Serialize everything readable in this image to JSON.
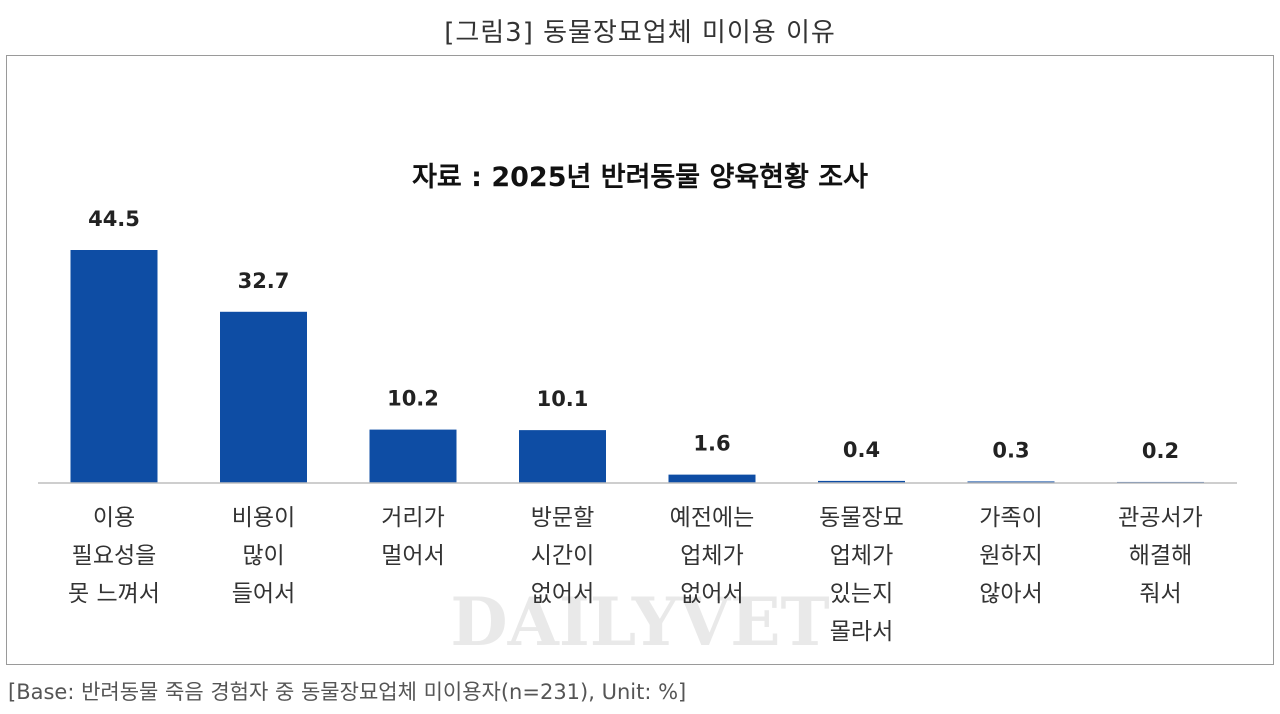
{
  "figure": {
    "title": "[그림3]  동물장묘업체  미이용  이유",
    "footnote": "[Base:  반려동물  죽음  경험자  중  동물장묘업체  미이용자(n=231),  Unit:  %]",
    "watermark": "DAILYVET"
  },
  "chart_data": {
    "type": "bar",
    "title": "자료 : 2025년 반려동물 양육현황 조사",
    "xlabel": "",
    "ylabel": "",
    "unit": "%",
    "ylim": [
      0,
      50
    ],
    "color": "#0e4da4",
    "categories": [
      [
        "이용",
        "필요성을",
        "못 느껴서"
      ],
      [
        "비용이",
        "많이",
        "들어서"
      ],
      [
        "거리가",
        "멀어서"
      ],
      [
        "방문할",
        "시간이",
        "없어서"
      ],
      [
        "예전에는",
        "업체가",
        "없어서"
      ],
      [
        "동물장묘",
        "업체가",
        "있는지",
        "몰라서"
      ],
      [
        "가족이",
        "원하지",
        "않아서"
      ],
      [
        "관공서가",
        "해결해",
        "줘서"
      ]
    ],
    "values": [
      44.5,
      32.7,
      10.2,
      10.1,
      1.6,
      0.4,
      0.3,
      0.2
    ],
    "value_labels": [
      "44.5",
      "32.7",
      "10.2",
      "10.1",
      "1.6",
      "0.4",
      "0.3",
      "0.2"
    ]
  }
}
